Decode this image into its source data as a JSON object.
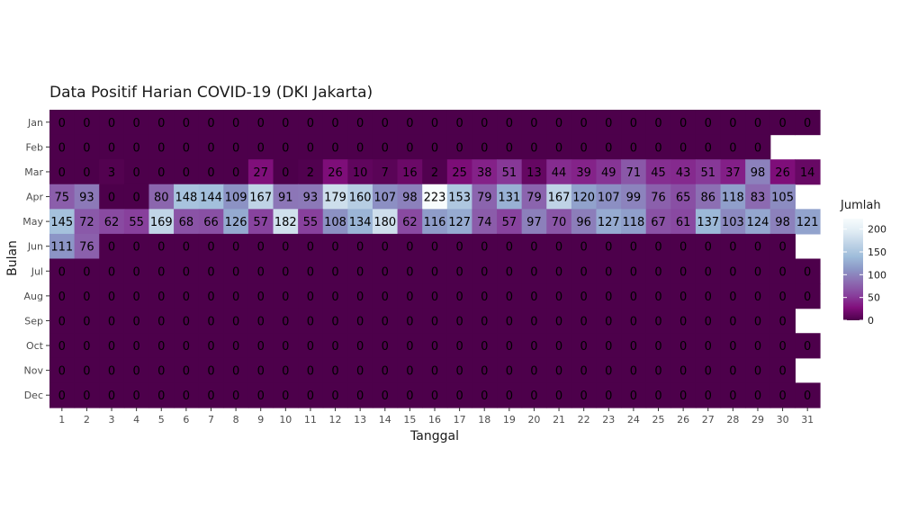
{
  "chart_data": {
    "type": "heatmap",
    "title": "Data Positif Harian COVID-19 (DKI Jakarta)",
    "xlabel": "Tanggal",
    "ylabel": "Bulan",
    "x": [
      1,
      2,
      3,
      4,
      5,
      6,
      7,
      8,
      9,
      10,
      11,
      12,
      13,
      14,
      15,
      16,
      17,
      18,
      19,
      20,
      21,
      22,
      23,
      24,
      25,
      26,
      27,
      28,
      29,
      30,
      31
    ],
    "y": [
      "Jan",
      "Feb",
      "Mar",
      "Apr",
      "May",
      "Jun",
      "Jul",
      "Aug",
      "Sep",
      "Oct",
      "Nov",
      "Dec"
    ],
    "values": [
      [
        0,
        0,
        0,
        0,
        0,
        0,
        0,
        0,
        0,
        0,
        0,
        0,
        0,
        0,
        0,
        0,
        0,
        0,
        0,
        0,
        0,
        0,
        0,
        0,
        0,
        0,
        0,
        0,
        0,
        0,
        0
      ],
      [
        0,
        0,
        0,
        0,
        0,
        0,
        0,
        0,
        0,
        0,
        0,
        0,
        0,
        0,
        0,
        0,
        0,
        0,
        0,
        0,
        0,
        0,
        0,
        0,
        0,
        0,
        0,
        0,
        0,
        null,
        null
      ],
      [
        0,
        0,
        3,
        0,
        0,
        0,
        0,
        0,
        27,
        0,
        2,
        26,
        10,
        7,
        16,
        2,
        25,
        38,
        51,
        13,
        44,
        39,
        49,
        71,
        45,
        43,
        51,
        37,
        98,
        26,
        14
      ],
      [
        75,
        93,
        0,
        0,
        80,
        148,
        144,
        109,
        167,
        91,
        93,
        179,
        160,
        107,
        98,
        223,
        153,
        79,
        131,
        79,
        167,
        120,
        107,
        99,
        76,
        65,
        86,
        118,
        83,
        105,
        null
      ],
      [
        145,
        72,
        62,
        55,
        169,
        68,
        66,
        126,
        57,
        182,
        55,
        108,
        134,
        180,
        62,
        116,
        127,
        74,
        57,
        97,
        70,
        96,
        127,
        118,
        67,
        61,
        137,
        103,
        124,
        98,
        121
      ],
      [
        111,
        76,
        0,
        0,
        0,
        0,
        0,
        0,
        0,
        0,
        0,
        0,
        0,
        0,
        0,
        0,
        0,
        0,
        0,
        0,
        0,
        0,
        0,
        0,
        0,
        0,
        0,
        0,
        0,
        0,
        null
      ],
      [
        0,
        0,
        0,
        0,
        0,
        0,
        0,
        0,
        0,
        0,
        0,
        0,
        0,
        0,
        0,
        0,
        0,
        0,
        0,
        0,
        0,
        0,
        0,
        0,
        0,
        0,
        0,
        0,
        0,
        0,
        0
      ],
      [
        0,
        0,
        0,
        0,
        0,
        0,
        0,
        0,
        0,
        0,
        0,
        0,
        0,
        0,
        0,
        0,
        0,
        0,
        0,
        0,
        0,
        0,
        0,
        0,
        0,
        0,
        0,
        0,
        0,
        0,
        0
      ],
      [
        0,
        0,
        0,
        0,
        0,
        0,
        0,
        0,
        0,
        0,
        0,
        0,
        0,
        0,
        0,
        0,
        0,
        0,
        0,
        0,
        0,
        0,
        0,
        0,
        0,
        0,
        0,
        0,
        0,
        0,
        null
      ],
      [
        0,
        0,
        0,
        0,
        0,
        0,
        0,
        0,
        0,
        0,
        0,
        0,
        0,
        0,
        0,
        0,
        0,
        0,
        0,
        0,
        0,
        0,
        0,
        0,
        0,
        0,
        0,
        0,
        0,
        0,
        0
      ],
      [
        0,
        0,
        0,
        0,
        0,
        0,
        0,
        0,
        0,
        0,
        0,
        0,
        0,
        0,
        0,
        0,
        0,
        0,
        0,
        0,
        0,
        0,
        0,
        0,
        0,
        0,
        0,
        0,
        0,
        0,
        null
      ],
      [
        0,
        0,
        0,
        0,
        0,
        0,
        0,
        0,
        0,
        0,
        0,
        0,
        0,
        0,
        0,
        0,
        0,
        0,
        0,
        0,
        0,
        0,
        0,
        0,
        0,
        0,
        0,
        0,
        0,
        0,
        0
      ]
    ],
    "color_scale": {
      "low_color": "#4d004b",
      "high_color": "#f7fcfd",
      "domain": [
        0,
        223
      ],
      "stops": [
        "#4d004b",
        "#810f7c",
        "#88419d",
        "#8c6bb1",
        "#8c96c6",
        "#9ebcda",
        "#bfd3e6",
        "#e0ecf4",
        "#f7fcfd"
      ]
    },
    "legend": {
      "title": "Jumlah",
      "ticks": [
        0,
        50,
        100,
        150,
        200
      ],
      "placement": "right"
    },
    "grid": false
  }
}
